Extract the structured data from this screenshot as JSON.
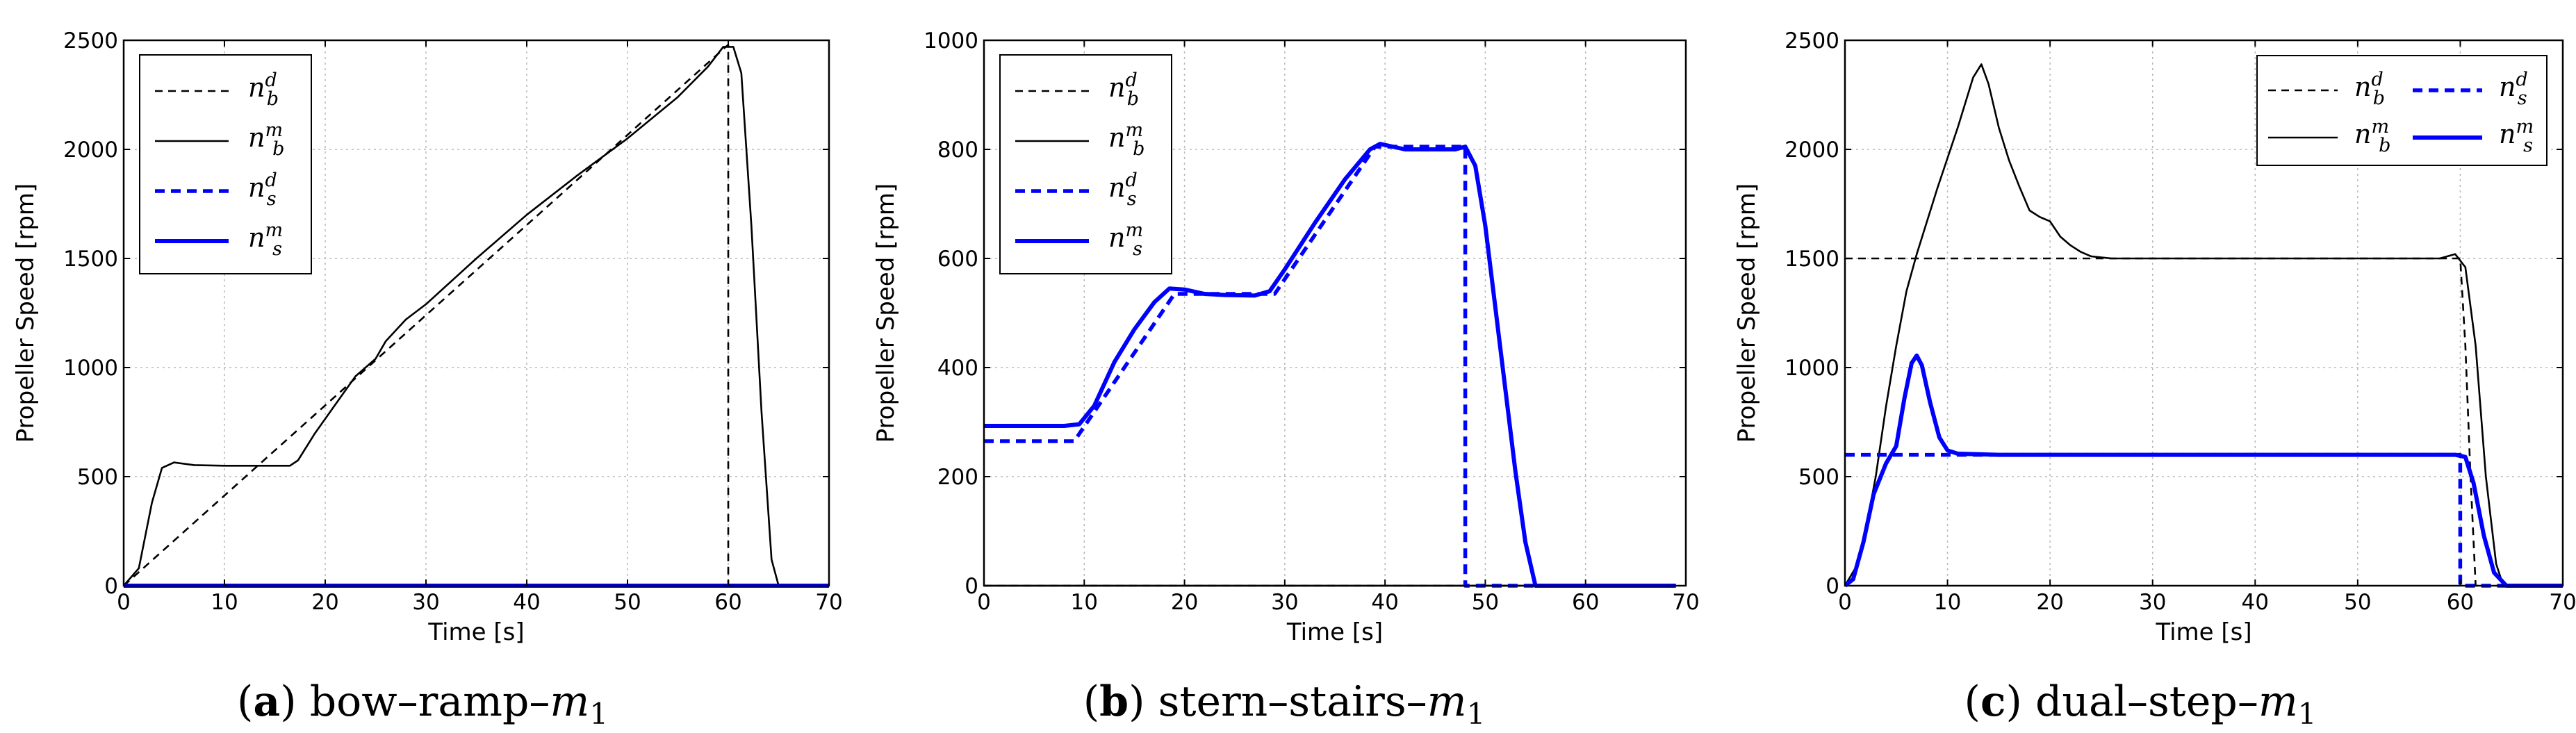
{
  "colors": {
    "d_b": "#000000",
    "m_b": "#000000",
    "d_s": "#0000ff",
    "m_s": "#0000ff",
    "grid": "#b8b8b8"
  },
  "legend_symbols": {
    "nbd": {
      "base": "n",
      "sub": "b",
      "sup": "d"
    },
    "nbm": {
      "base": "n",
      "sub": "b",
      "sup": "m"
    },
    "nsd": {
      "base": "n",
      "sub": "s",
      "sup": "d"
    },
    "nsm": {
      "base": "n",
      "sub": "s",
      "sup": "m"
    }
  },
  "chart_data": [
    {
      "type": "line",
      "caption": {
        "letter": "a",
        "text": " bow–ramp–",
        "var": "m",
        "sub": "1"
      },
      "xlabel": "Time [s]",
      "ylabel": "Propeller Speed [rpm]",
      "xlim": [
        0,
        70
      ],
      "ylim": [
        0,
        2500
      ],
      "xticks": [
        0,
        10,
        20,
        30,
        40,
        50,
        60,
        70
      ],
      "yticks": [
        0,
        500,
        1000,
        1500,
        2000,
        2500
      ],
      "grid": true,
      "legend": "top-left",
      "legend_columns": 1,
      "series": [
        {
          "name": "nbd",
          "style": "dashed-thin-black",
          "points": [
            [
              0,
              0
            ],
            [
              60,
              2480
            ],
            [
              60,
              0
            ],
            [
              70,
              0
            ]
          ]
        },
        {
          "name": "nbm",
          "style": "solid-thin-black",
          "points": [
            [
              0,
              0
            ],
            [
              1.5,
              80
            ],
            [
              2.8,
              380
            ],
            [
              3.8,
              540
            ],
            [
              5,
              565
            ],
            [
              7,
              553
            ],
            [
              10,
              550
            ],
            [
              14,
              550
            ],
            [
              16.5,
              550
            ],
            [
              17.3,
              575
            ],
            [
              19,
              700
            ],
            [
              21,
              830
            ],
            [
              23,
              960
            ],
            [
              25,
              1040
            ],
            [
              26,
              1120
            ],
            [
              28,
              1220
            ],
            [
              30,
              1290
            ],
            [
              35,
              1500
            ],
            [
              40,
              1700
            ],
            [
              45,
              1880
            ],
            [
              50,
              2050
            ],
            [
              55,
              2240
            ],
            [
              58,
              2380
            ],
            [
              59.5,
              2470
            ],
            [
              60.5,
              2470
            ],
            [
              61.3,
              2350
            ],
            [
              62.3,
              1650
            ],
            [
              63.3,
              800
            ],
            [
              64.3,
              120
            ],
            [
              65,
              0
            ],
            [
              70,
              0
            ]
          ]
        },
        {
          "name": "nsd",
          "style": "dashed-thick-blue",
          "points": [
            [
              0,
              0
            ],
            [
              70,
              0
            ]
          ]
        },
        {
          "name": "nsm",
          "style": "solid-thick-blue",
          "points": [
            [
              0,
              0
            ],
            [
              70,
              0
            ]
          ]
        }
      ]
    },
    {
      "type": "line",
      "caption": {
        "letter": "b",
        "text": " stern–stairs–",
        "var": "m",
        "sub": "1"
      },
      "xlabel": "Time [s]",
      "ylabel": "Propeller Speed [rpm]",
      "xlim": [
        0,
        70
      ],
      "ylim": [
        0,
        1000
      ],
      "xticks": [
        0,
        10,
        20,
        30,
        40,
        50,
        60,
        70
      ],
      "yticks": [
        0,
        200,
        400,
        600,
        800,
        1000
      ],
      "grid": true,
      "legend": "top-left",
      "legend_columns": 1,
      "series": [
        {
          "name": "nbd",
          "style": "dashed-thin-black",
          "points": [
            [
              0,
              0
            ],
            [
              69,
              0
            ]
          ]
        },
        {
          "name": "nbm",
          "style": "solid-thin-black",
          "points": [
            [
              0,
              0
            ],
            [
              69,
              0
            ]
          ]
        },
        {
          "name": "nsd",
          "style": "dashed-thick-blue",
          "points": [
            [
              0,
              265
            ],
            [
              9,
              265
            ],
            [
              19,
              535
            ],
            [
              29,
              535
            ],
            [
              39,
              805
            ],
            [
              48,
              805
            ],
            [
              48,
              0
            ],
            [
              69,
              0
            ]
          ]
        },
        {
          "name": "nsm",
          "style": "solid-thick-blue",
          "points": [
            [
              0,
              293
            ],
            [
              8,
              293
            ],
            [
              9.5,
              296
            ],
            [
              11,
              330
            ],
            [
              13,
              410
            ],
            [
              15,
              470
            ],
            [
              17,
              520
            ],
            [
              18.5,
              545
            ],
            [
              20,
              543
            ],
            [
              22,
              535
            ],
            [
              24,
              533
            ],
            [
              27,
              532
            ],
            [
              28.5,
              540
            ],
            [
              30,
              580
            ],
            [
              33,
              665
            ],
            [
              36,
              745
            ],
            [
              38.5,
              800
            ],
            [
              39.5,
              810
            ],
            [
              42,
              800
            ],
            [
              45,
              800
            ],
            [
              47,
              800
            ],
            [
              48,
              805
            ],
            [
              49,
              770
            ],
            [
              50,
              660
            ],
            [
              51,
              510
            ],
            [
              52,
              360
            ],
            [
              53,
              210
            ],
            [
              54,
              80
            ],
            [
              55,
              0
            ],
            [
              69,
              0
            ]
          ]
        }
      ]
    },
    {
      "type": "line",
      "caption": {
        "letter": "c",
        "text": " dual–step–",
        "var": "m",
        "sub": "1"
      },
      "xlabel": "Time [s]",
      "ylabel": "Propeller Speed [rpm]",
      "xlim": [
        0,
        70
      ],
      "ylim": [
        0,
        2500
      ],
      "xticks": [
        0,
        10,
        20,
        30,
        40,
        50,
        60,
        70
      ],
      "yticks": [
        0,
        500,
        1000,
        1500,
        2000,
        2500
      ],
      "grid": true,
      "legend": "top-right",
      "legend_columns": 2,
      "series": [
        {
          "name": "nbd",
          "style": "dashed-thin-black",
          "points": [
            [
              0,
              1500
            ],
            [
              60,
              1500
            ],
            [
              60.5,
              1100
            ],
            [
              61,
              500
            ],
            [
              61.5,
              0
            ],
            [
              70,
              0
            ]
          ]
        },
        {
          "name": "nbm",
          "style": "solid-thin-black",
          "points": [
            [
              0,
              0
            ],
            [
              1,
              80
            ],
            [
              2,
              250
            ],
            [
              3,
              500
            ],
            [
              4,
              820
            ],
            [
              5,
              1100
            ],
            [
              6,
              1350
            ],
            [
              7,
              1520
            ],
            [
              9,
              1820
            ],
            [
              11,
              2100
            ],
            [
              12.5,
              2330
            ],
            [
              13.3,
              2390
            ],
            [
              14,
              2300
            ],
            [
              15,
              2100
            ],
            [
              16,
              1950
            ],
            [
              17,
              1830
            ],
            [
              18,
              1720
            ],
            [
              19,
              1690
            ],
            [
              20,
              1670
            ],
            [
              21,
              1600
            ],
            [
              22,
              1560
            ],
            [
              23,
              1530
            ],
            [
              24,
              1510
            ],
            [
              26,
              1500
            ],
            [
              30,
              1500
            ],
            [
              40,
              1500
            ],
            [
              50,
              1500
            ],
            [
              58,
              1500
            ],
            [
              59.5,
              1520
            ],
            [
              60.5,
              1460
            ],
            [
              61.5,
              1100
            ],
            [
              62.5,
              500
            ],
            [
              63.5,
              100
            ],
            [
              64.2,
              0
            ],
            [
              70,
              0
            ]
          ]
        },
        {
          "name": "nsd",
          "style": "dashed-thick-blue",
          "points": [
            [
              0,
              600
            ],
            [
              60,
              600
            ],
            [
              60,
              0
            ],
            [
              70,
              0
            ]
          ]
        },
        {
          "name": "nsm",
          "style": "solid-thick-blue",
          "points": [
            [
              0,
              0
            ],
            [
              0.8,
              30
            ],
            [
              1.8,
              200
            ],
            [
              2.8,
              420
            ],
            [
              4,
              560
            ],
            [
              5,
              640
            ],
            [
              5.8,
              860
            ],
            [
              6.5,
              1020
            ],
            [
              7,
              1055
            ],
            [
              7.5,
              1010
            ],
            [
              8.3,
              840
            ],
            [
              9.2,
              680
            ],
            [
              10,
              620
            ],
            [
              11,
              605
            ],
            [
              15,
              600
            ],
            [
              30,
              600
            ],
            [
              50,
              600
            ],
            [
              59.5,
              600
            ],
            [
              60.5,
              590
            ],
            [
              61.3,
              470
            ],
            [
              62.3,
              230
            ],
            [
              63.3,
              60
            ],
            [
              64.5,
              0
            ],
            [
              70,
              0
            ]
          ]
        }
      ]
    }
  ]
}
